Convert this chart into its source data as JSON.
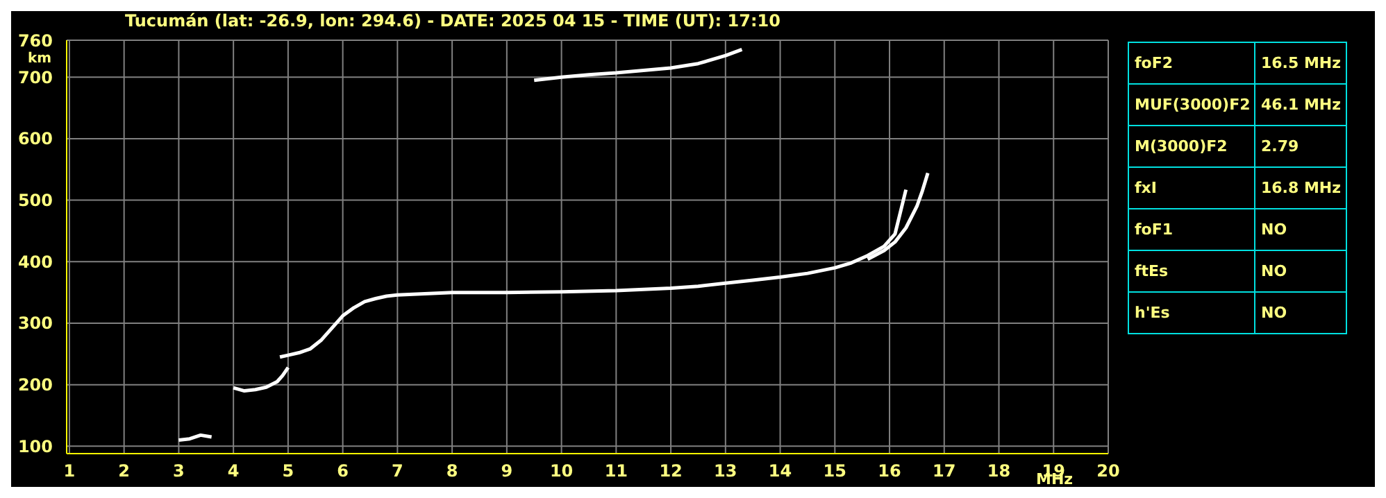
{
  "chart_data": {
    "type": "line",
    "title": "Tucumán (lat: -26.9, lon: 294.6) - DATE: 2025 04 15 - TIME (UT): 17:10",
    "xlabel": "MHz",
    "ylabel": "km",
    "series": [
      {
        "color": "#ffffff",
        "x": [
          3.0,
          3.2,
          3.4,
          3.6
        ],
        "values": [
          110,
          112,
          118,
          115
        ]
      },
      {
        "color": "#ffffff",
        "x": [
          4.0,
          4.2,
          4.4,
          4.6,
          4.8,
          4.9,
          5.0
        ],
        "values": [
          195,
          190,
          192,
          196,
          205,
          215,
          228
        ]
      },
      {
        "color": "#ffffff",
        "x": [
          4.85,
          5.0,
          5.2,
          5.4,
          5.6,
          5.8,
          6.0,
          6.2,
          6.4,
          6.6,
          6.8,
          7.0,
          7.5,
          8,
          9,
          10,
          11,
          12,
          12.5,
          13,
          13.5,
          14,
          14.5,
          15,
          15.3,
          15.6,
          15.9,
          16.1,
          16.3
        ],
        "values": [
          245,
          248,
          252,
          258,
          272,
          292,
          312,
          325,
          335,
          340,
          344,
          346,
          348,
          350,
          350,
          351,
          353,
          357,
          360,
          365,
          370,
          375,
          381,
          390,
          398,
          410,
          425,
          445,
          517
        ]
      },
      {
        "color": "#ffffff",
        "x": [
          15.6,
          15.9,
          16.1,
          16.3,
          16.5,
          16.6,
          16.7
        ],
        "values": [
          404,
          418,
          432,
          455,
          490,
          515,
          544
        ]
      },
      {
        "color": "#ffffff",
        "x": [
          9.5,
          10,
          10.5,
          11,
          11.5,
          12,
          12.5,
          13,
          13.3
        ],
        "values": [
          695,
          700,
          704,
          707,
          711,
          715,
          722,
          735,
          745
        ]
      }
    ],
    "xlim": [
      0.95,
      20
    ],
    "xticks": [
      1,
      2,
      3,
      4,
      5,
      6,
      7,
      8,
      9,
      10,
      11,
      12,
      13,
      14,
      15,
      16,
      17,
      18,
      19,
      20
    ],
    "ylim": [
      88,
      760
    ],
    "yticks": [
      100,
      200,
      300,
      400,
      500,
      600,
      700,
      760
    ],
    "grid": true,
    "marker": "none",
    "line_style": "solid",
    "legend": false,
    "annotations": [
      "foF2",
      "16.5 MHz",
      "MUF(3000)F2",
      "46.1 MHz",
      "M(3000)F2",
      "2.79",
      "fxI",
      "16.8 MHz",
      "foF1",
      "NO",
      "ftEs",
      "NO",
      "h'Es",
      "NO"
    ]
  }
}
